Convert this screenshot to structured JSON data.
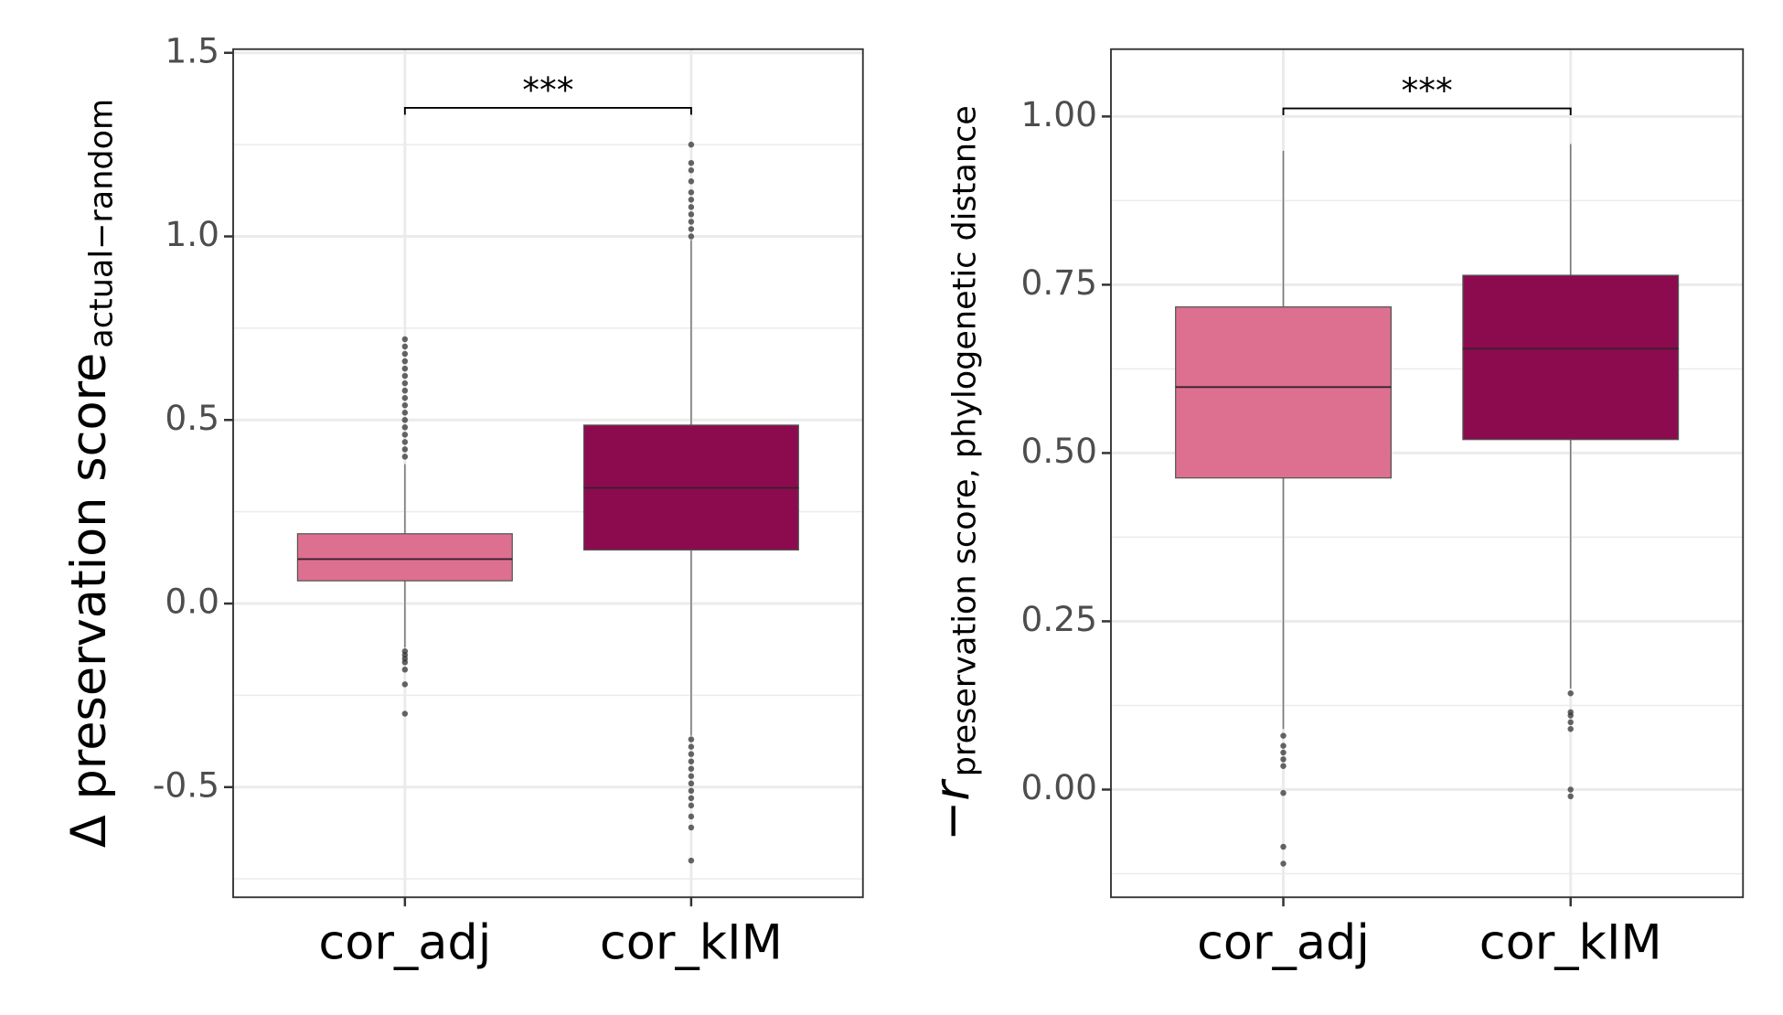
{
  "chart_data": [
    {
      "type": "box",
      "y_label": "Δ preservation score",
      "y_label_sub": "actual−random",
      "categories": [
        "cor_adj",
        "cor_kIM"
      ],
      "colors": [
        "#dd7090",
        "#8c0b4f"
      ],
      "stats": [
        {
          "whisker_low": -0.12,
          "q1": 0.062,
          "median": 0.121,
          "q3": 0.19,
          "whisker_high": 0.38,
          "outliers": [
            0.4,
            0.42,
            0.44,
            0.46,
            0.48,
            0.5,
            0.52,
            0.54,
            0.56,
            0.58,
            0.6,
            0.62,
            0.64,
            0.66,
            0.68,
            0.7,
            0.72,
            -0.13,
            -0.14,
            -0.15,
            -0.16,
            -0.18,
            -0.22,
            -0.3
          ]
        },
        {
          "whisker_low": -0.36,
          "q1": 0.146,
          "median": 0.315,
          "q3": 0.486,
          "whisker_high": 0.99,
          "outliers": [
            1.0,
            1.02,
            1.04,
            1.06,
            1.08,
            1.1,
            1.12,
            1.15,
            1.18,
            1.2,
            1.25,
            -0.37,
            -0.39,
            -0.41,
            -0.43,
            -0.45,
            -0.47,
            -0.49,
            -0.51,
            -0.53,
            -0.55,
            -0.58,
            -0.61,
            -0.7
          ]
        }
      ],
      "annotation": "***",
      "annotation_y": 1.35,
      "ylim": [
        -0.8,
        1.51
      ],
      "yticks": [
        {
          "value": -0.5,
          "label": "-0.5"
        },
        {
          "value": 0,
          "label": "0.0"
        },
        0.5,
        {
          "value": 1,
          "label": "1.0"
        },
        1.5
      ],
      "yminor": [
        -0.75,
        -0.25,
        0.25,
        0.75,
        1.25
      ],
      "grid": true
    },
    {
      "type": "box",
      "y_label": "−r",
      "y_label_sub": "preservation score, phylogenetic distance",
      "categories": [
        "cor_adj",
        "cor_kIM"
      ],
      "colors": [
        "#dd7090",
        "#8c0b4f"
      ],
      "stats": [
        {
          "whisker_low": 0.09,
          "q1": 0.463,
          "median": 0.598,
          "q3": 0.717,
          "whisker_high": 0.949,
          "outliers": [
            0.08,
            0.065,
            0.055,
            0.045,
            0.035,
            -0.005,
            -0.085,
            -0.11
          ]
        },
        {
          "whisker_low": 0.15,
          "q1": 0.52,
          "median": 0.655,
          "q3": 0.764,
          "whisker_high": 0.959,
          "outliers": [
            0.143,
            0.115,
            0.11,
            0.1,
            0.09,
            0.0,
            -0.01
          ]
        }
      ],
      "annotation": "***",
      "annotation_y": 1.012,
      "ylim": [
        -0.16,
        1.1
      ],
      "yticks": [
        {
          "value": 0,
          "label": "0.00"
        },
        0.25,
        {
          "value": 0.5,
          "label": "0.50"
        },
        0.75,
        {
          "value": 1,
          "label": "1.00"
        }
      ],
      "yminor": [
        -0.125,
        0.125,
        0.375,
        0.625,
        0.875
      ],
      "grid": true
    }
  ]
}
